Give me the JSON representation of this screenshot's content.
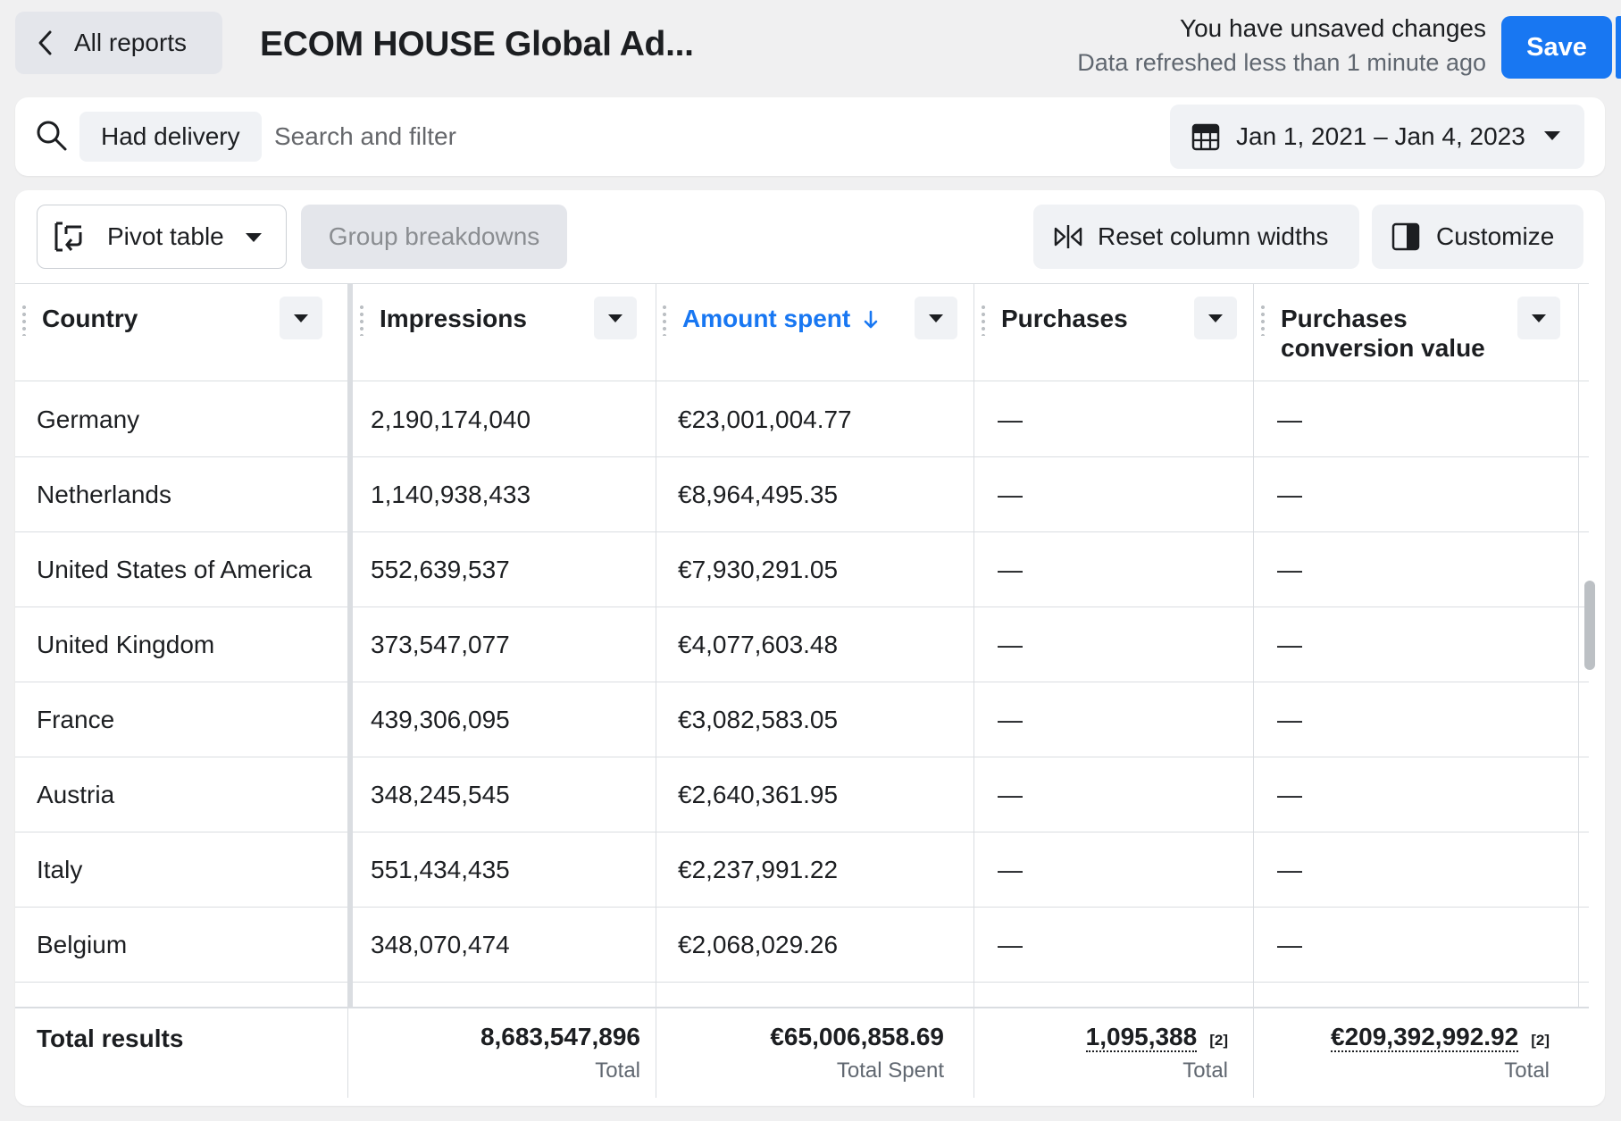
{
  "header": {
    "back_label": "All reports",
    "title": "ECOM HOUSE Global Ad...",
    "status_main": "You have unsaved changes",
    "status_sub": "Data refreshed less than 1 minute ago",
    "save_label": "Save"
  },
  "filter": {
    "chip_label": "Had delivery",
    "search_placeholder": "Search and filter",
    "date_range": "Jan 1, 2021 – Jan 4, 2023"
  },
  "toolbar": {
    "pivot_label": "Pivot table",
    "group_label": "Group breakdowns",
    "reset_label": "Reset column widths",
    "customize_label": "Customize"
  },
  "table": {
    "columns": {
      "country": "Country",
      "impressions": "Impressions",
      "amount_spent": "Amount spent",
      "purchases": "Purchases",
      "conversion_value_line1": "Purchases",
      "conversion_value_line2": "conversion value"
    },
    "rows": [
      {
        "country": "Germany",
        "impressions": "2,190,174,040",
        "amount_spent": "€23,001,004.77",
        "purchases": "—",
        "conversion_value": "—"
      },
      {
        "country": "Netherlands",
        "impressions": "1,140,938,433",
        "amount_spent": "€8,964,495.35",
        "purchases": "—",
        "conversion_value": "—"
      },
      {
        "country": "United States of America",
        "impressions": "552,639,537",
        "amount_spent": "€7,930,291.05",
        "purchases": "—",
        "conversion_value": "—"
      },
      {
        "country": "United Kingdom",
        "impressions": "373,547,077",
        "amount_spent": "€4,077,603.48",
        "purchases": "—",
        "conversion_value": "—"
      },
      {
        "country": "France",
        "impressions": "439,306,095",
        "amount_spent": "€3,082,583.05",
        "purchases": "—",
        "conversion_value": "—"
      },
      {
        "country": "Austria",
        "impressions": "348,245,545",
        "amount_spent": "€2,640,361.95",
        "purchases": "—",
        "conversion_value": "—"
      },
      {
        "country": "Italy",
        "impressions": "551,434,435",
        "amount_spent": "€2,237,991.22",
        "purchases": "—",
        "conversion_value": "—"
      },
      {
        "country": "Belgium",
        "impressions": "348,070,474",
        "amount_spent": "€2,068,029.26",
        "purchases": "—",
        "conversion_value": "—"
      }
    ],
    "totals": {
      "label": "Total results",
      "impressions": "8,683,547,896",
      "impressions_sub": "Total",
      "amount_spent": "€65,006,858.69",
      "amount_spent_sub": "Total Spent",
      "purchases": "1,095,388",
      "purchases_note": "[2]",
      "purchases_sub": "Total",
      "conversion_value": "€209,392,992.92",
      "conversion_value_note": "[2]",
      "conversion_value_sub": "Total"
    }
  },
  "colors": {
    "accent": "#1877f2",
    "page_bg": "#f0f0f1"
  }
}
